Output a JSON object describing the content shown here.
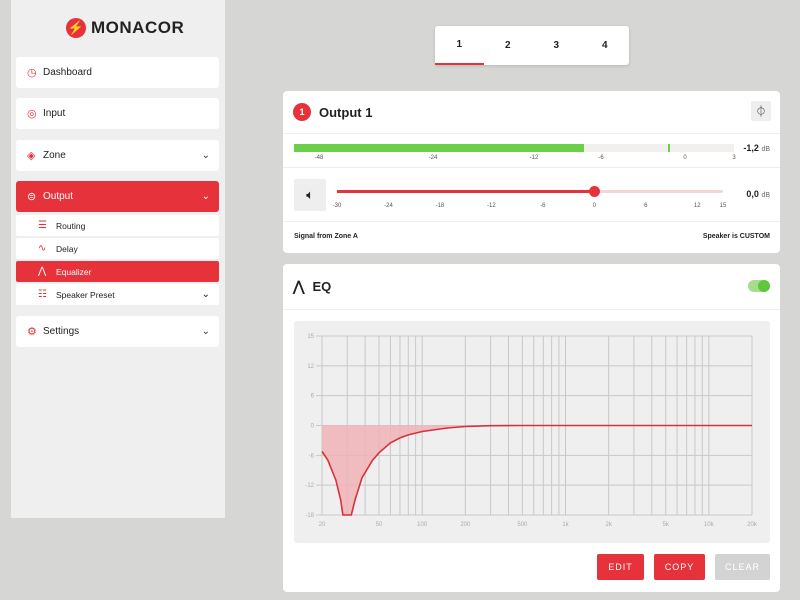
{
  "brand": {
    "name": "MONACOR",
    "accent": "#e5323b"
  },
  "sidebar": {
    "items": [
      {
        "label": "Dashboard",
        "icon": "gauge-icon"
      },
      {
        "label": "Input",
        "icon": "target-icon"
      },
      {
        "label": "Zone",
        "icon": "speaker-diamond-icon"
      },
      {
        "label": "Output",
        "icon": "output-icon"
      },
      {
        "label": "Settings",
        "icon": "gear-icon"
      }
    ],
    "sub_items": [
      {
        "label": "Routing",
        "icon": "routing-icon"
      },
      {
        "label": "Delay",
        "icon": "wave-icon"
      },
      {
        "label": "Equalizer",
        "icon": "peak-icon"
      },
      {
        "label": "Speaker Preset",
        "icon": "sliders-icon"
      }
    ]
  },
  "tabs": [
    "1",
    "2",
    "3",
    "4"
  ],
  "output": {
    "badge": "1",
    "title": "Output 1",
    "meter": {
      "level_db": -7.5,
      "peak_db": -1.2,
      "readout": "-1,2",
      "unit": "dB",
      "ticks": [
        "-48",
        "-24",
        "-12",
        "-6",
        "0",
        "3"
      ]
    },
    "gain": {
      "value_db": 0,
      "readout": "0,0",
      "unit": "dB",
      "ticks": [
        "-30",
        "-24",
        "-18",
        "-12",
        "-6",
        "0",
        "6",
        "12",
        "15"
      ]
    },
    "signal": "Signal from Zone A",
    "speaker": "Speaker is CUSTOM"
  },
  "eq": {
    "title": "EQ",
    "enabled": true,
    "buttons": {
      "edit": "EDIT",
      "copy": "COPY",
      "clear": "CLEAR"
    }
  },
  "chart_data": {
    "type": "line",
    "x_scale": "log",
    "xlim": [
      20,
      20000
    ],
    "ylim": [
      -18,
      18
    ],
    "y_ticks": [
      "15",
      "12",
      "6",
      "0",
      "-6",
      "-12",
      "-18"
    ],
    "x_ticks": [
      "20",
      "50",
      "100",
      "200",
      "500",
      "1k",
      "2k",
      "5k",
      "10k",
      "20k"
    ],
    "x": [
      20,
      22,
      25,
      27,
      28,
      32,
      34,
      38,
      45,
      50,
      60,
      70,
      80,
      100,
      150,
      200,
      300,
      500,
      1000,
      20000
    ],
    "y": [
      -5.2,
      -7,
      -11,
      -15,
      -18,
      -18,
      -15,
      -10.5,
      -7,
      -5.5,
      -3.5,
      -2.5,
      -1.9,
      -1.2,
      -0.5,
      -0.2,
      -0.05,
      0,
      0,
      0
    ],
    "line_color": "#d5323b",
    "fill_color": "#f0b3b6"
  }
}
